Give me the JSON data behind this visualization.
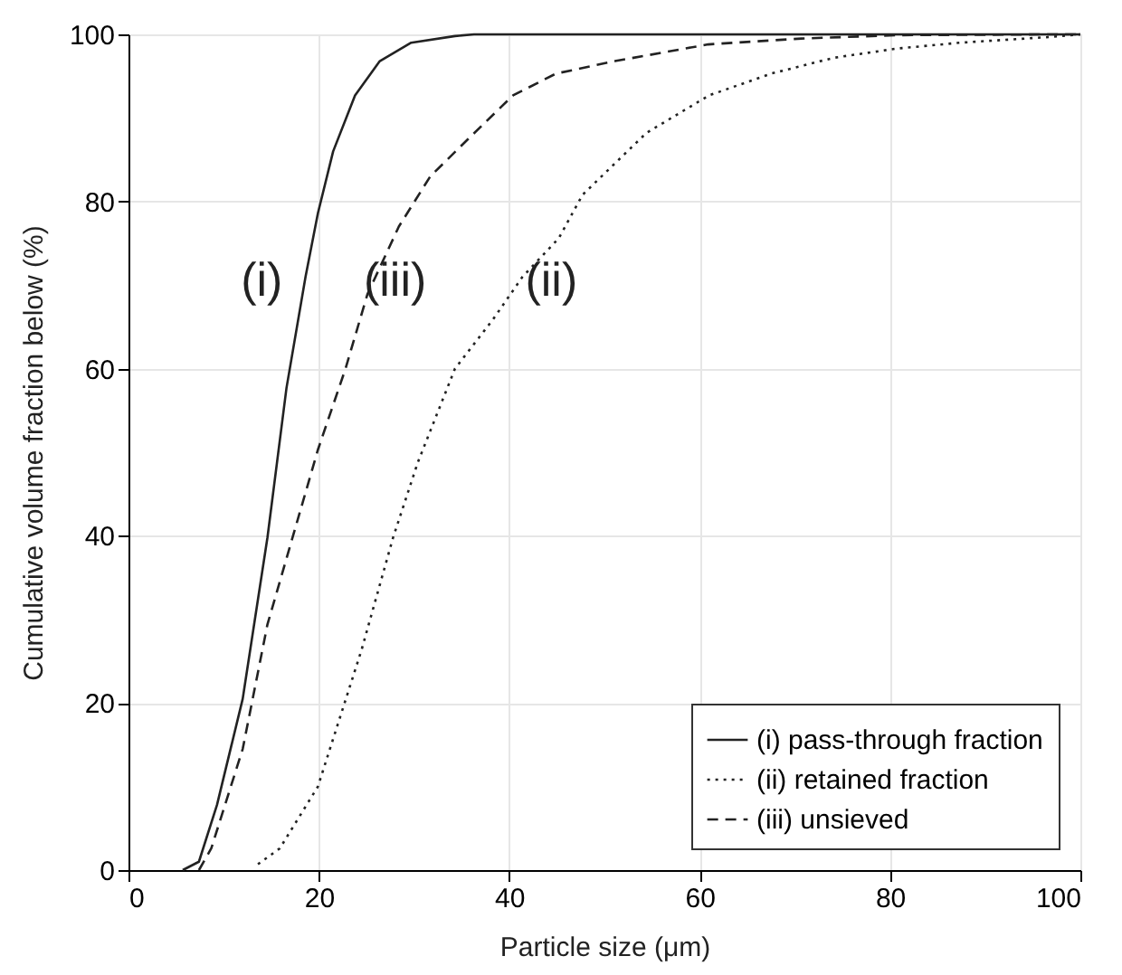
{
  "chart_data": {
    "type": "line",
    "xlabel": "Particle size (μm)",
    "ylabel": "Cumulative volume fraction below (%)",
    "xlim": [
      0,
      100
    ],
    "ylim": [
      0,
      100
    ],
    "xticks": [
      0,
      20,
      40,
      60,
      80,
      100
    ],
    "yticks": [
      0,
      20,
      40,
      60,
      80,
      100
    ],
    "grid": true,
    "legend": "bottom right",
    "marker": "none",
    "series": [
      {
        "name": "(i) pass-through fraction",
        "color": "#222222",
        "line_style": "solid",
        "x": [
          5.7,
          7.4,
          9.3,
          12,
          14.6,
          16.6,
          18.6,
          19.9,
          21.5,
          23.8,
          26.4,
          29.7,
          34.3,
          36.3,
          100
        ],
        "values": [
          0,
          1,
          7.8,
          20.5,
          39.8,
          57.7,
          71,
          78.6,
          86,
          92.7,
          96.8,
          99,
          99.8,
          100,
          100
        ]
      },
      {
        "name": "(ii) retained fraction",
        "color": "#222222",
        "line_style": "dotted",
        "x": [
          13.6,
          15.9,
          19.9,
          24.5,
          27.8,
          30.4,
          34.3,
          38.3,
          41.4,
          45.2,
          47.7,
          54.4,
          61,
          67.5,
          74.1,
          80.7,
          87.3,
          97,
          100
        ],
        "values": [
          0.7,
          2.6,
          10,
          26.4,
          39.8,
          48.8,
          60,
          65.9,
          71,
          75.6,
          80.8,
          88.2,
          92.7,
          95.3,
          97.2,
          98.3,
          99,
          99.7,
          100
        ]
      },
      {
        "name": "(iii) unsieved",
        "color": "#222222",
        "line_style": "dashed",
        "x": [
          7.4,
          8.7,
          12,
          14.6,
          19.9,
          22.8,
          25.1,
          28.4,
          31.7,
          35.7,
          40.4,
          44.9,
          51.1,
          60.9,
          70.7,
          80.6,
          97,
          100
        ],
        "values": [
          0,
          2.6,
          14.5,
          29.4,
          50.3,
          60,
          68.9,
          77,
          83,
          87.5,
          92.7,
          95.3,
          96.8,
          98.8,
          99.5,
          99.9,
          100,
          100
        ]
      }
    ],
    "annotations": [
      "(i)",
      "(iii)",
      "(ii)"
    ]
  }
}
